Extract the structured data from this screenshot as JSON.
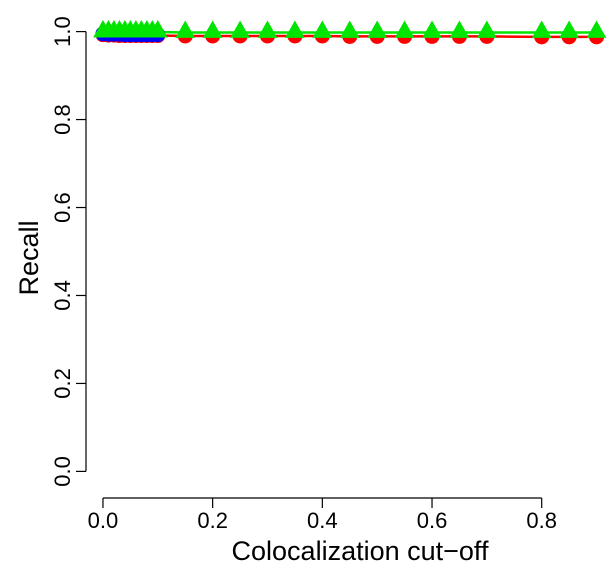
{
  "chart_data": {
    "type": "line",
    "title": "",
    "xlabel": "Colocalization cut−off",
    "ylabel": "Recall",
    "xlim": [
      -0.02,
      0.93
    ],
    "ylim": [
      -0.04,
      1.04
    ],
    "x_ticks": [
      0.0,
      0.2,
      0.4,
      0.6,
      0.8
    ],
    "x_tick_labels": [
      "0.0",
      "0.2",
      "0.4",
      "0.6",
      "0.8"
    ],
    "y_ticks": [
      0.0,
      0.2,
      0.4,
      0.6,
      0.8,
      1.0
    ],
    "y_tick_labels": [
      "0.0",
      "0.2",
      "0.4",
      "0.6",
      "0.8",
      "1.0"
    ],
    "grid": false,
    "legend": "none",
    "series": [
      {
        "color": "#FF0000",
        "marker": "circle",
        "x": [
          0.0,
          0.01,
          0.02,
          0.03,
          0.04,
          0.05,
          0.06,
          0.07,
          0.08,
          0.09,
          0.1,
          0.15,
          0.2,
          0.25,
          0.3,
          0.35,
          0.4,
          0.45,
          0.5,
          0.55,
          0.6,
          0.65,
          0.7,
          0.8,
          0.85,
          0.9
        ],
        "values": [
          0.993,
          0.992,
          0.992,
          0.991,
          0.991,
          0.991,
          0.991,
          0.991,
          0.991,
          0.991,
          0.991,
          0.99,
          0.99,
          0.99,
          0.99,
          0.99,
          0.99,
          0.989,
          0.989,
          0.989,
          0.989,
          0.989,
          0.989,
          0.988,
          0.988,
          0.988
        ]
      },
      {
        "color": "#0000FF",
        "marker": "circle",
        "x": [
          0.0,
          0.01,
          0.02,
          0.03,
          0.04,
          0.05,
          0.06,
          0.07,
          0.08,
          0.09,
          0.1
        ],
        "values": [
          0.995,
          0.994,
          0.994,
          0.994,
          0.993,
          0.993,
          0.993,
          0.993,
          0.993,
          0.993,
          0.993
        ]
      },
      {
        "color": "#00E400",
        "marker": "triangle",
        "x": [
          0.0,
          0.01,
          0.02,
          0.03,
          0.04,
          0.05,
          0.06,
          0.07,
          0.08,
          0.09,
          0.1,
          0.15,
          0.2,
          0.25,
          0.3,
          0.35,
          0.4,
          0.45,
          0.5,
          0.55,
          0.6,
          0.65,
          0.7,
          0.8,
          0.85,
          0.9
        ],
        "values": [
          0.999,
          0.999,
          0.999,
          0.999,
          0.999,
          0.999,
          0.999,
          0.999,
          0.999,
          0.999,
          0.999,
          0.998,
          0.998,
          0.998,
          0.998,
          0.998,
          0.998,
          0.998,
          0.998,
          0.998,
          0.998,
          0.998,
          0.998,
          0.998,
          0.998,
          0.998
        ]
      }
    ]
  }
}
